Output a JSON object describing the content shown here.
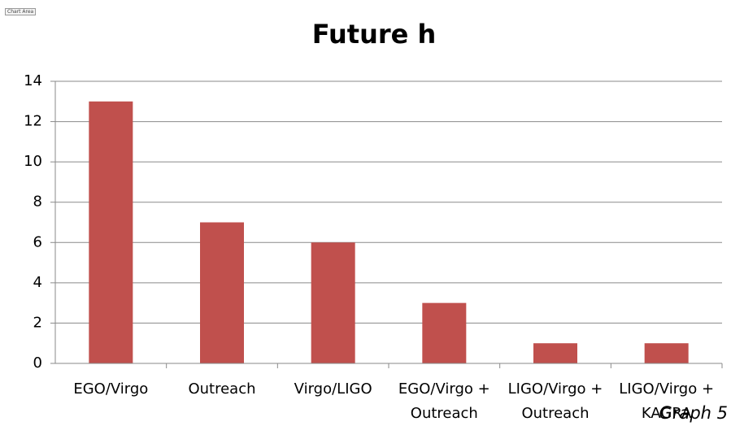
{
  "chart_area_label": "Chart Area",
  "chart_data": {
    "type": "bar",
    "title": "Future h",
    "categories": [
      "EGO/Virgo",
      "Outreach",
      "Virgo/LIGO",
      "EGO/Virgo + Outreach",
      "LIGO/Virgo + Outreach",
      "LIGO/Virgo + KAGRA"
    ],
    "values": [
      13,
      7,
      6,
      3,
      1,
      1
    ],
    "color": "#c0504d",
    "ylim": [
      0,
      14
    ],
    "yticks": [
      0,
      2,
      4,
      6,
      8,
      10,
      12,
      14
    ],
    "grid": true,
    "annotation": "Graph 5"
  }
}
